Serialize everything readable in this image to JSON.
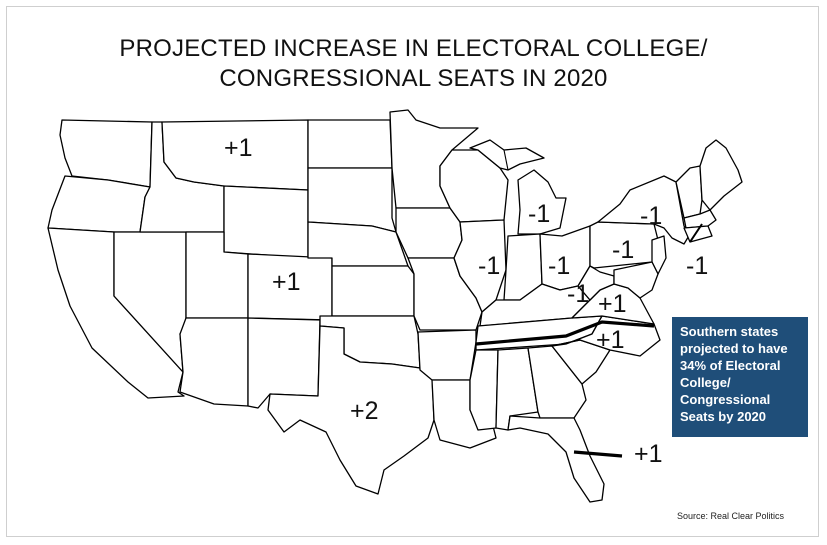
{
  "title": {
    "line1": "PROJECTED INCREASE IN ELECTORAL COLLEGE/",
    "line2": "CONGRESSIONAL SEATS IN 2020"
  },
  "labels": [
    {
      "id": "montana",
      "text": "+1"
    },
    {
      "id": "colorado",
      "text": "+1"
    },
    {
      "id": "texas",
      "text": "+2"
    },
    {
      "id": "florida",
      "text": "+1"
    },
    {
      "id": "virginia",
      "text": "+1"
    },
    {
      "id": "north-carolina",
      "text": "+1"
    },
    {
      "id": "michigan",
      "text": "-1"
    },
    {
      "id": "illinois",
      "text": "-1"
    },
    {
      "id": "ohio",
      "text": "-1"
    },
    {
      "id": "pennsylvania",
      "text": "-1"
    },
    {
      "id": "new-york",
      "text": "-1"
    },
    {
      "id": "west-virginia",
      "text": "-1"
    },
    {
      "id": "rhode-island",
      "text": "-1"
    }
  ],
  "callout": {
    "text": "Southern states projected to have 34% of Electoral College/ Congressional Seats by 2020",
    "color": "#1f4e79"
  },
  "source": "Source: Real Clear Politics"
}
